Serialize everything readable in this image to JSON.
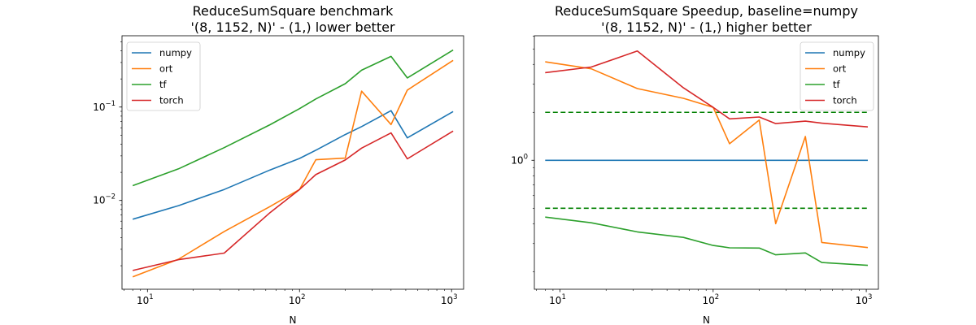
{
  "chart_data": [
    {
      "type": "line",
      "title": "ReduceSumSquare benchmark\n'(8, 1152, N)' - (1,) lower better",
      "xlabel": "N",
      "ylabel": "",
      "xscale": "log",
      "yscale": "log",
      "xlim": [
        6.8,
        1200
      ],
      "ylim": [
        0.00112,
        0.58
      ],
      "x_ticks": [
        {
          "value": 10,
          "base": "10",
          "exp": "1"
        },
        {
          "value": 100,
          "base": "10",
          "exp": "2"
        },
        {
          "value": 1000,
          "base": "10",
          "exp": "3"
        }
      ],
      "y_ticks": [
        {
          "value": 0.01,
          "base": "10",
          "exp": "−2"
        },
        {
          "value": 0.1,
          "base": "10",
          "exp": "−1"
        }
      ],
      "legend_position": "upper-left",
      "series": [
        {
          "name": "numpy",
          "color": "#1f77b4",
          "style": "solid",
          "x": [
            8,
            16,
            32,
            64,
            100,
            128,
            200,
            256,
            400,
            512,
            1024
          ],
          "y": [
            0.0063,
            0.0088,
            0.0131,
            0.0212,
            0.0282,
            0.0345,
            0.0508,
            0.0618,
            0.0915,
            0.0468,
            0.0895
          ]
        },
        {
          "name": "ort",
          "color": "#ff7f0e",
          "style": "solid",
          "x": [
            8,
            16,
            32,
            64,
            100,
            128,
            200,
            256,
            400,
            512,
            1024
          ],
          "y": [
            0.00152,
            0.00235,
            0.00465,
            0.0086,
            0.0131,
            0.0273,
            0.0284,
            0.148,
            0.065,
            0.152,
            0.316
          ]
        },
        {
          "name": "tf",
          "color": "#2ca02c",
          "style": "solid",
          "x": [
            8,
            16,
            32,
            64,
            100,
            128,
            200,
            256,
            400,
            512,
            1024
          ],
          "y": [
            0.0144,
            0.0218,
            0.0368,
            0.0647,
            0.0962,
            0.122,
            0.178,
            0.248,
            0.349,
            0.205,
            0.408
          ]
        },
        {
          "name": "torch",
          "color": "#d62728",
          "style": "solid",
          "x": [
            8,
            16,
            32,
            64,
            100,
            128,
            200,
            256,
            400,
            512,
            1024
          ],
          "y": [
            0.00178,
            0.00232,
            0.00273,
            0.0074,
            0.0131,
            0.0189,
            0.0271,
            0.0363,
            0.0528,
            0.0279,
            0.0553
          ]
        }
      ]
    },
    {
      "type": "line",
      "title": "ReduceSumSquare Speedup, baseline=numpy\n'(8, 1152, N)' - (1,) higher better",
      "xlabel": "N",
      "ylabel": "",
      "xscale": "log",
      "yscale": "log",
      "xlim": [
        6.8,
        1200
      ],
      "ylim": [
        0.155,
        6.05
      ],
      "x_ticks": [
        {
          "value": 10,
          "base": "10",
          "exp": "1"
        },
        {
          "value": 100,
          "base": "10",
          "exp": "2"
        },
        {
          "value": 1000,
          "base": "10",
          "exp": "3"
        }
      ],
      "y_ticks": [
        {
          "value": 1,
          "base": "10",
          "exp": "0"
        }
      ],
      "legend_position": "upper-right",
      "series": [
        {
          "name": "numpy",
          "color": "#1f77b4",
          "style": "solid",
          "x": [
            8,
            1024
          ],
          "y": [
            1.0,
            1.0
          ]
        },
        {
          "name": "ort",
          "color": "#ff7f0e",
          "style": "solid",
          "x": [
            8,
            16,
            32,
            64,
            100,
            128,
            200,
            256,
            400,
            512,
            1024
          ],
          "y": [
            4.15,
            3.75,
            2.82,
            2.45,
            2.15,
            1.27,
            1.79,
            0.4,
            1.41,
            0.305,
            0.283
          ]
        },
        {
          "name": "tf",
          "color": "#2ca02c",
          "style": "solid",
          "x": [
            8,
            16,
            32,
            64,
            100,
            128,
            200,
            256,
            400,
            512,
            1024
          ],
          "y": [
            0.44,
            0.405,
            0.355,
            0.328,
            0.292,
            0.282,
            0.281,
            0.255,
            0.262,
            0.228,
            0.219
          ]
        },
        {
          "name": "torch",
          "color": "#d62728",
          "style": "solid",
          "x": [
            8,
            16,
            32,
            64,
            100,
            128,
            200,
            256,
            400,
            512,
            1024
          ],
          "y": [
            3.55,
            3.85,
            4.85,
            2.85,
            2.15,
            1.82,
            1.87,
            1.7,
            1.76,
            1.71,
            1.62
          ]
        }
      ],
      "reference_lines": [
        {
          "y": 2.0,
          "color": "#008000",
          "style": "dashed"
        },
        {
          "y": 0.5,
          "color": "#008000",
          "style": "dashed"
        }
      ]
    }
  ]
}
